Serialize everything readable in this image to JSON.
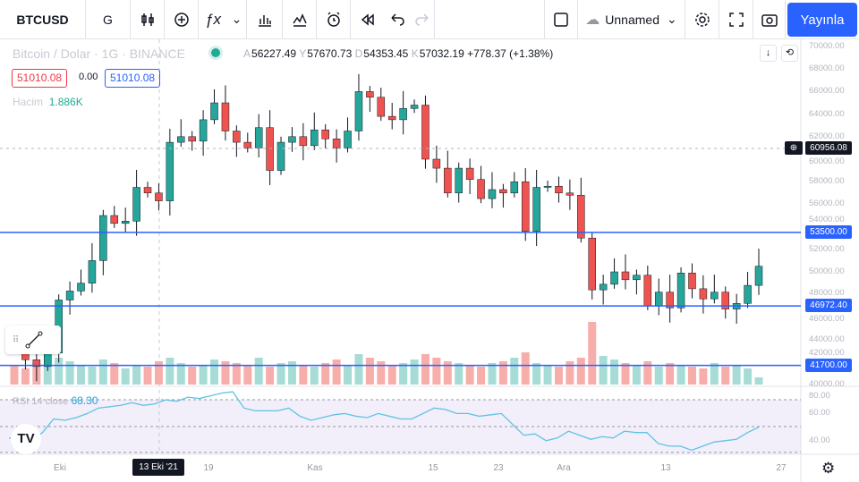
{
  "toolbar": {
    "symbol": "BTCUSD",
    "interval": "G",
    "layout_name": "Unnamed",
    "publish": "Yayınla",
    "icons": [
      "candles-icon",
      "add-compare-icon",
      "indicators-icon",
      "chevron-down-icon",
      "templates-icon",
      "compare-icon",
      "alert-icon",
      "replay-icon",
      "undo-icon",
      "redo-icon",
      "layout-square-icon",
      "cloud-icon",
      "chevron-down-icon",
      "settings-icon",
      "fullscreen-icon",
      "camera-icon"
    ]
  },
  "legend": {
    "title": "Bitcoin / Dolar · 1G · BINANCE",
    "ohlc": [
      {
        "k": "A",
        "v": "56227.49"
      },
      {
        "k": "Y",
        "v": "57670.73"
      },
      {
        "k": "D",
        "v": "54353.45"
      },
      {
        "k": "K",
        "v": "57032.19"
      }
    ],
    "change": "+778.37 (+1.38%)",
    "bid": "51010.08",
    "spread": "0.00",
    "ask": "51010.08",
    "volume_label": "Hacim",
    "volume_value": "1.886K",
    "rsi_label": "RSI 14 close",
    "rsi_value": "68.30"
  },
  "price_axis": [
    "70000.00",
    "68000.00",
    "66000.00",
    "64000.00",
    "62000.00",
    "60000.00",
    "58000.00",
    "56000.00",
    "54000.00",
    "52000.00",
    "50000.00",
    "48000.00",
    "46000.00",
    "44000.00",
    "42000.00",
    "40000.00"
  ],
  "rsi_axis": [
    "80.00",
    "60.00",
    "40.00"
  ],
  "price_tags": [
    {
      "label": "60956.08",
      "price": 60956.08,
      "kind": "last"
    },
    {
      "label": "53500.00",
      "price": 53500,
      "kind": "line"
    },
    {
      "label": "46972.40",
      "price": 46972.4,
      "kind": "line"
    },
    {
      "label": "41700.00",
      "price": 41700,
      "kind": "line"
    }
  ],
  "time_axis": [
    "Eki",
    "19",
    "Kas",
    "15",
    "23",
    "Ara",
    "13",
    "27"
  ],
  "time_selected": "13 Eki '21",
  "colors": {
    "up": "#26a69a",
    "down": "#ef5350",
    "line": "#2962ff",
    "rsi": "#5fc3e4"
  },
  "chart_data": {
    "type": "candlestick",
    "closes": [
      43200,
      42200,
      41600,
      42800,
      47500,
      48300,
      49000,
      51000,
      55000,
      54300,
      54500,
      57500,
      57000,
      56300,
      61500,
      62000,
      61600,
      63500,
      65000,
      62500,
      61500,
      61000,
      62800,
      59000,
      61500,
      62000,
      61200,
      62600,
      61800,
      61000,
      62500,
      66000,
      65500,
      63800,
      63500,
      64500,
      64800,
      60000,
      59200,
      57000,
      59200,
      58200,
      56500,
      57300,
      57000,
      58000,
      53600,
      57500,
      57600,
      57000,
      56800,
      53000,
      48400,
      48900,
      50000,
      49300,
      49700,
      47000,
      48200,
      46800,
      49900,
      48500,
      47600,
      48200,
      46700,
      47200,
      48800,
      50500
    ],
    "volumes": [
      22,
      18,
      24,
      20,
      30,
      26,
      22,
      20,
      28,
      24,
      18,
      22,
      20,
      26,
      30,
      24,
      20,
      22,
      28,
      26,
      24,
      22,
      30,
      20,
      24,
      26,
      22,
      20,
      24,
      28,
      22,
      34,
      30,
      26,
      22,
      24,
      28,
      34,
      30,
      26,
      24,
      22,
      20,
      24,
      26,
      30,
      36,
      24,
      22,
      20,
      26,
      30,
      70,
      32,
      28,
      24,
      22,
      26,
      20,
      24,
      22,
      20,
      18,
      24,
      20,
      22,
      18,
      8
    ],
    "rsi": [
      42,
      41,
      40,
      46,
      56,
      55,
      57,
      60,
      64,
      65,
      66,
      68,
      66,
      67,
      70,
      69,
      72,
      71,
      73,
      75,
      76,
      64,
      62,
      62,
      62,
      64,
      58,
      55,
      57,
      59,
      60,
      58,
      57,
      60,
      58,
      56,
      56,
      60,
      64,
      63,
      60,
      60,
      58,
      59,
      60,
      52,
      44,
      45,
      40,
      42,
      47,
      44,
      41,
      43,
      42,
      47,
      46,
      46,
      38,
      36,
      36,
      33,
      36,
      39,
      40,
      41,
      46,
      50
    ],
    "ylim": [
      40000,
      70000
    ],
    "rsi_ylim": [
      30,
      80
    ]
  }
}
